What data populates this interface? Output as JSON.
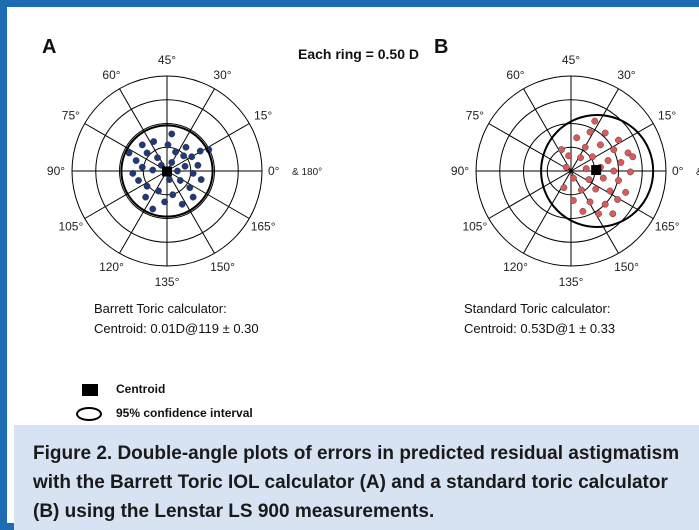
{
  "annotation": "Each ring = 0.50 D",
  "angles": [
    {
      "deg": 0,
      "label": "0°"
    },
    {
      "deg": 15,
      "label": "15°"
    },
    {
      "deg": 30,
      "label": "30°"
    },
    {
      "deg": 45,
      "label": "45°"
    },
    {
      "deg": 60,
      "label": "60°"
    },
    {
      "deg": 75,
      "label": "75°"
    },
    {
      "deg": 90,
      "label": "90°"
    },
    {
      "deg": 105,
      "label": "105°"
    },
    {
      "deg": 120,
      "label": "120°"
    },
    {
      "deg": 135,
      "label": "135°"
    },
    {
      "deg": 150,
      "label": "150°"
    },
    {
      "deg": 165,
      "label": "165°"
    }
  ],
  "zero_suffix": "& 180°",
  "zero_suffix_cut": "& ",
  "legend": {
    "centroid_label": "Centroid",
    "ci_label": "95% confidence interval"
  },
  "caption": "Figure 2.  Double-angle plots of errors in predicted residual astigmatism with the Barrett Toric IOL calculator (A) and a standard toric calculator (B) using the Lenstar LS 900 measurements.",
  "colors": {
    "frame": "#1e6cb4",
    "caption_bg": "#d7e2f3",
    "series_a": "#1f3a7a",
    "series_b": "#d85a5a"
  },
  "chart_data": [
    {
      "type": "scatter",
      "panel_label": "A",
      "title": "Barrett Toric calculator:",
      "stat": "Centroid: 0.01D@119 ± 0.30",
      "ring_step_D": 0.5,
      "rings": 4,
      "radius_max_D": 2.0,
      "centroid": {
        "x": 0.0,
        "y": -0.01
      },
      "ci_ellipse": {
        "cx": 0.0,
        "cy": 0.0,
        "rx": 0.96,
        "ry": 0.96
      },
      "points": [
        {
          "x": -0.52,
          "y": 0.55
        },
        {
          "x": -0.28,
          "y": 0.62
        },
        {
          "x": 0.02,
          "y": 0.55
        },
        {
          "x": 0.4,
          "y": 0.5
        },
        {
          "x": -0.42,
          "y": 0.38
        },
        {
          "x": 0.18,
          "y": 0.4
        },
        {
          "x": 0.52,
          "y": 0.3
        },
        {
          "x": -0.65,
          "y": 0.22
        },
        {
          "x": -0.2,
          "y": 0.28
        },
        {
          "x": 0.65,
          "y": 0.12
        },
        {
          "x": -0.52,
          "y": 0.08
        },
        {
          "x": 0.1,
          "y": 0.18
        },
        {
          "x": 0.38,
          "y": 0.1
        },
        {
          "x": -0.72,
          "y": -0.05
        },
        {
          "x": -0.3,
          "y": 0.02
        },
        {
          "x": 0.22,
          "y": 0.0
        },
        {
          "x": 0.55,
          "y": -0.05
        },
        {
          "x": -0.6,
          "y": -0.2
        },
        {
          "x": 0.05,
          "y": -0.18
        },
        {
          "x": 0.28,
          "y": -0.2
        },
        {
          "x": 0.72,
          "y": -0.18
        },
        {
          "x": -0.42,
          "y": -0.32
        },
        {
          "x": 0.48,
          "y": -0.35
        },
        {
          "x": -0.18,
          "y": -0.42
        },
        {
          "x": 0.12,
          "y": -0.5
        },
        {
          "x": -0.45,
          "y": -0.55
        },
        {
          "x": 0.55,
          "y": -0.55
        },
        {
          "x": -0.05,
          "y": -0.65
        },
        {
          "x": 0.32,
          "y": -0.7
        },
        {
          "x": -0.3,
          "y": -0.8
        },
        {
          "x": 0.88,
          "y": 0.45
        },
        {
          "x": 0.1,
          "y": 0.78
        },
        {
          "x": -0.12,
          "y": 0.12
        },
        {
          "x": 0.35,
          "y": 0.32
        },
        {
          "x": -0.8,
          "y": 0.38
        },
        {
          "x": 0.7,
          "y": 0.42
        }
      ]
    },
    {
      "type": "scatter",
      "panel_label": "B",
      "title": "Standard Toric calculator:",
      "stat": "Centroid: 0.53D@1 ± 0.33",
      "ring_step_D": 0.5,
      "rings": 4,
      "radius_max_D": 2.0,
      "centroid": {
        "x": 0.53,
        "y": 0.02
      },
      "ci_ellipse": {
        "cx": 0.55,
        "cy": 0.0,
        "rx": 1.18,
        "ry": 1.18
      },
      "points": [
        {
          "x": 0.12,
          "y": 0.7
        },
        {
          "x": 0.4,
          "y": 0.82
        },
        {
          "x": 0.72,
          "y": 0.8
        },
        {
          "x": 1.0,
          "y": 0.65
        },
        {
          "x": 0.3,
          "y": 0.5
        },
        {
          "x": 0.62,
          "y": 0.55
        },
        {
          "x": 0.9,
          "y": 0.45
        },
        {
          "x": 1.2,
          "y": 0.38
        },
        {
          "x": -0.05,
          "y": 0.32
        },
        {
          "x": 0.2,
          "y": 0.28
        },
        {
          "x": 0.45,
          "y": 0.3
        },
        {
          "x": 0.78,
          "y": 0.22
        },
        {
          "x": 1.05,
          "y": 0.18
        },
        {
          "x": -0.1,
          "y": 0.08
        },
        {
          "x": 0.32,
          "y": 0.05
        },
        {
          "x": 0.62,
          "y": 0.08
        },
        {
          "x": 0.9,
          "y": 0.0
        },
        {
          "x": 1.25,
          "y": -0.02
        },
        {
          "x": 0.05,
          "y": -0.15
        },
        {
          "x": 0.38,
          "y": -0.18
        },
        {
          "x": 0.68,
          "y": -0.15
        },
        {
          "x": 1.0,
          "y": -0.2
        },
        {
          "x": -0.15,
          "y": -0.35
        },
        {
          "x": 0.22,
          "y": -0.4
        },
        {
          "x": 0.52,
          "y": -0.38
        },
        {
          "x": 0.82,
          "y": -0.42
        },
        {
          "x": 1.15,
          "y": -0.45
        },
        {
          "x": 0.05,
          "y": -0.62
        },
        {
          "x": 0.4,
          "y": -0.65
        },
        {
          "x": 0.72,
          "y": -0.7
        },
        {
          "x": 0.98,
          "y": -0.6
        },
        {
          "x": 0.25,
          "y": -0.85
        },
        {
          "x": 0.58,
          "y": -0.9
        },
        {
          "x": 1.3,
          "y": 0.3
        },
        {
          "x": -0.2,
          "y": 0.45
        },
        {
          "x": 0.5,
          "y": 1.05
        },
        {
          "x": 0.88,
          "y": -0.9
        }
      ]
    }
  ]
}
